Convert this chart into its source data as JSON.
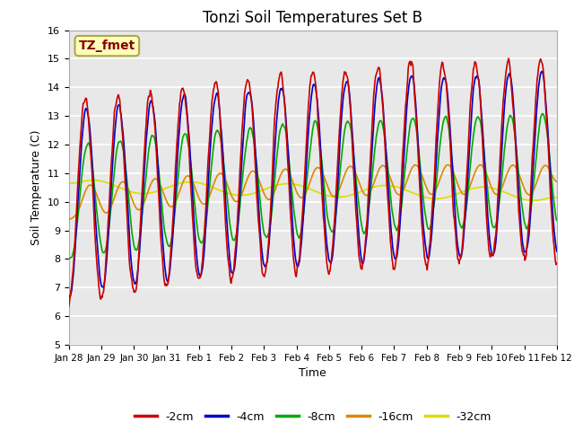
{
  "title": "Tonzi Soil Temperatures Set B",
  "xlabel": "Time",
  "ylabel": "Soil Temperature (C)",
  "ylim": [
    5.0,
    16.0
  ],
  "yticks": [
    5.0,
    6.0,
    7.0,
    8.0,
    9.0,
    10.0,
    11.0,
    12.0,
    13.0,
    14.0,
    15.0,
    16.0
  ],
  "xtick_labels": [
    "Jan 28",
    "Jan 29",
    "Jan 30",
    "Jan 31",
    "Feb 1",
    "Feb 2",
    "Feb 3",
    "Feb 4",
    "Feb 5",
    "Feb 6",
    "Feb 7",
    "Feb 8",
    "Feb 9",
    "Feb 10",
    "Feb 11",
    "Feb 12"
  ],
  "series_colors": [
    "#cc0000",
    "#0000cc",
    "#00aa00",
    "#dd8800",
    "#dddd00"
  ],
  "series_names": [
    "-2cm",
    "-4cm",
    "-8cm",
    "-16cm",
    "-32cm"
  ],
  "line_width": 1.2,
  "fig_bg_color": "#ffffff",
  "plot_bg_color": "#e8e8e8",
  "grid_color": "#ffffff",
  "annotation_text": "TZ_fmet",
  "annotation_color": "#880000",
  "annotation_bg": "#ffffbb",
  "annotation_border": "#aaaa44"
}
